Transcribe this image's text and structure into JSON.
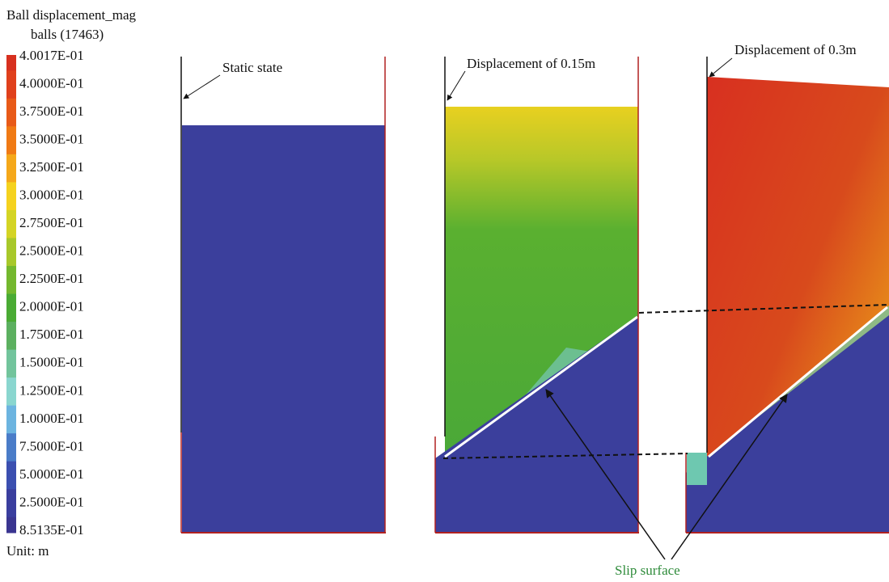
{
  "legend": {
    "title": "Ball displacement_mag",
    "subtitle": "balls (17463)",
    "unit": "Unit: m",
    "entries": [
      {
        "label": "4.0017E-01",
        "color": "#d7301f"
      },
      {
        "label": "4.0000E-01",
        "color": "#e0401c"
      },
      {
        "label": "3.7500E-01",
        "color": "#e85a18"
      },
      {
        "label": "3.5000E-01",
        "color": "#f07a14"
      },
      {
        "label": "3.2500E-01",
        "color": "#f5a81a"
      },
      {
        "label": "3.0000E-01",
        "color": "#f5d21e"
      },
      {
        "label": "2.7500E-01",
        "color": "#d4d424"
      },
      {
        "label": "2.5000E-01",
        "color": "#a8c82a"
      },
      {
        "label": "2.2500E-01",
        "color": "#74b82e"
      },
      {
        "label": "2.0000E-01",
        "color": "#4aab34"
      },
      {
        "label": "1.7500E-01",
        "color": "#5cb060"
      },
      {
        "label": "1.5000E-01",
        "color": "#72c49c"
      },
      {
        "label": "1.2500E-01",
        "color": "#8ad6cf"
      },
      {
        "label": "1.0000E-01",
        "color": "#6cb4e0"
      },
      {
        "label": "7.5000E-01",
        "color": "#4a7cc8"
      },
      {
        "label": "5.0000E-01",
        "color": "#3b4fb0"
      },
      {
        "label": "2.5000E-01",
        "color": "#3a3e9e"
      },
      {
        "label": "8.5135E-01",
        "color": "#3a3590"
      }
    ]
  },
  "panels": [
    {
      "label": "Static state"
    },
    {
      "label": "Displacement of 0.15m"
    },
    {
      "label": "Displacement of 0.3m"
    }
  ],
  "annotation": "Slip surface"
}
